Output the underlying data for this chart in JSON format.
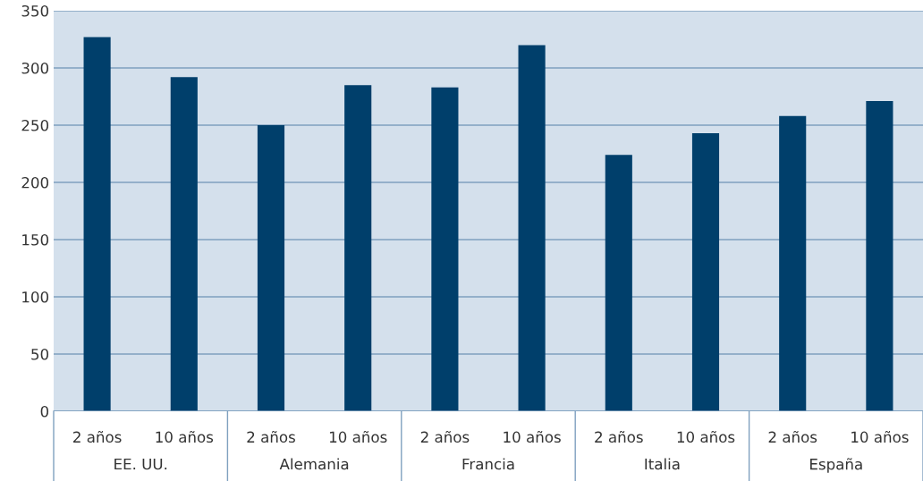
{
  "chart_data": {
    "type": "bar",
    "categories": [
      "2 años",
      "10 años",
      "2 años",
      "10 años",
      "2 años",
      "10 años",
      "2 años",
      "10 años",
      "2 años",
      "10 años"
    ],
    "values": [
      327,
      292,
      250,
      285,
      283,
      320,
      224,
      243,
      258,
      271
    ],
    "color": "#003f6b",
    "annotations": [
      "EE. UU.",
      "Alemania",
      "Francia",
      "Italia",
      "España"
    ],
    "ylim": [
      0,
      350
    ],
    "yticks": [
      0,
      50,
      100,
      150,
      200,
      250,
      300,
      350
    ],
    "grid": "y"
  }
}
